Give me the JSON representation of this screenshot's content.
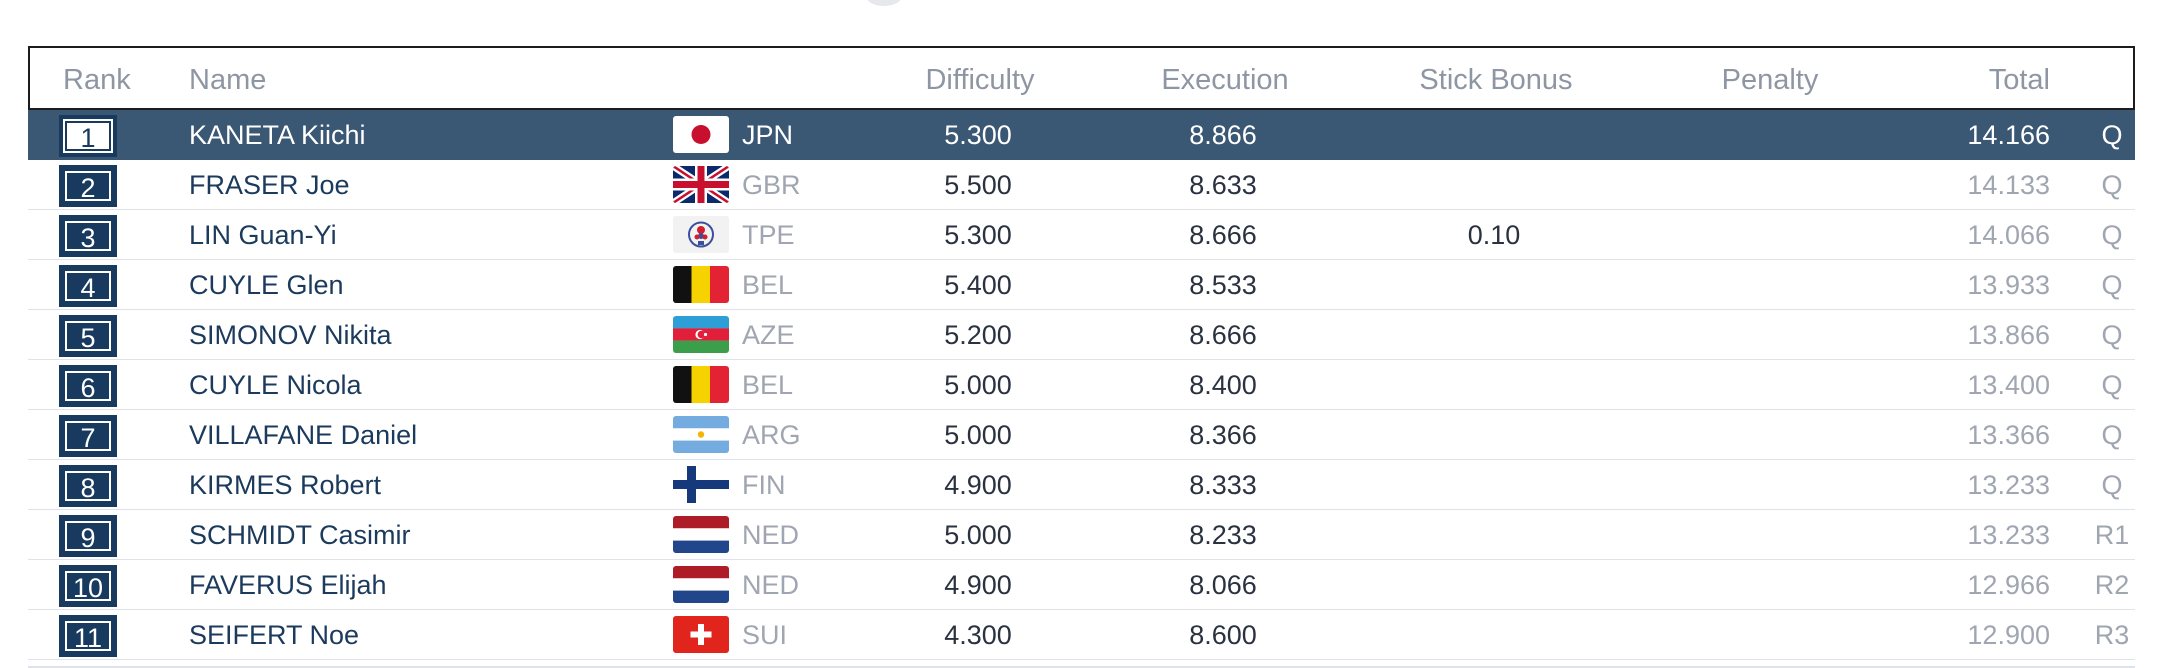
{
  "headers": {
    "rank": "Rank",
    "name": "Name",
    "difficulty": "Difficulty",
    "execution": "Execution",
    "stick_bonus": "Stick Bonus",
    "penalty": "Penalty",
    "total": "Total"
  },
  "colors": {
    "highlight_row": "#3a5774",
    "rank_box": "#173a5e",
    "name_text": "#1b3a5c",
    "muted_text": "#a0a6b1"
  },
  "rows": [
    {
      "rank": "1",
      "name": "KANETA Kiichi",
      "nation": "JPN",
      "flag": "jpn-flag-icon",
      "difficulty": "5.300",
      "execution": "8.866",
      "stick_bonus": "",
      "penalty": "",
      "total": "14.166",
      "qual": "Q",
      "highlight": true
    },
    {
      "rank": "2",
      "name": "FRASER Joe",
      "nation": "GBR",
      "flag": "gbr-flag-icon",
      "difficulty": "5.500",
      "execution": "8.633",
      "stick_bonus": "",
      "penalty": "",
      "total": "14.133",
      "qual": "Q"
    },
    {
      "rank": "3",
      "name": "LIN Guan-Yi",
      "nation": "TPE",
      "flag": "tpe-flag-icon",
      "difficulty": "5.300",
      "execution": "8.666",
      "stick_bonus": "0.10",
      "penalty": "",
      "total": "14.066",
      "qual": "Q"
    },
    {
      "rank": "4",
      "name": "CUYLE Glen",
      "nation": "BEL",
      "flag": "bel-flag-icon",
      "difficulty": "5.400",
      "execution": "8.533",
      "stick_bonus": "",
      "penalty": "",
      "total": "13.933",
      "qual": "Q"
    },
    {
      "rank": "5",
      "name": "SIMONOV Nikita",
      "nation": "AZE",
      "flag": "aze-flag-icon",
      "difficulty": "5.200",
      "execution": "8.666",
      "stick_bonus": "",
      "penalty": "",
      "total": "13.866",
      "qual": "Q"
    },
    {
      "rank": "6",
      "name": "CUYLE Nicola",
      "nation": "BEL",
      "flag": "bel-flag-icon",
      "difficulty": "5.000",
      "execution": "8.400",
      "stick_bonus": "",
      "penalty": "",
      "total": "13.400",
      "qual": "Q"
    },
    {
      "rank": "7",
      "name": "VILLAFANE Daniel",
      "nation": "ARG",
      "flag": "arg-flag-icon",
      "difficulty": "5.000",
      "execution": "8.366",
      "stick_bonus": "",
      "penalty": "",
      "total": "13.366",
      "qual": "Q"
    },
    {
      "rank": "8",
      "name": "KIRMES Robert",
      "nation": "FIN",
      "flag": "fin-flag-icon",
      "difficulty": "4.900",
      "execution": "8.333",
      "stick_bonus": "",
      "penalty": "",
      "total": "13.233",
      "qual": "Q"
    },
    {
      "rank": "9",
      "name": "SCHMIDT Casimir",
      "nation": "NED",
      "flag": "ned-flag-icon",
      "difficulty": "5.000",
      "execution": "8.233",
      "stick_bonus": "",
      "penalty": "",
      "total": "13.233",
      "qual": "R1"
    },
    {
      "rank": "10",
      "name": "FAVERUS Elijah",
      "nation": "NED",
      "flag": "ned-flag-icon",
      "difficulty": "4.900",
      "execution": "8.066",
      "stick_bonus": "",
      "penalty": "",
      "total": "12.966",
      "qual": "R2"
    },
    {
      "rank": "11",
      "name": "SEIFERT Noe",
      "nation": "SUI",
      "flag": "sui-flag-icon",
      "difficulty": "4.300",
      "execution": "8.600",
      "stick_bonus": "",
      "penalty": "",
      "total": "12.900",
      "qual": "R3"
    }
  ]
}
